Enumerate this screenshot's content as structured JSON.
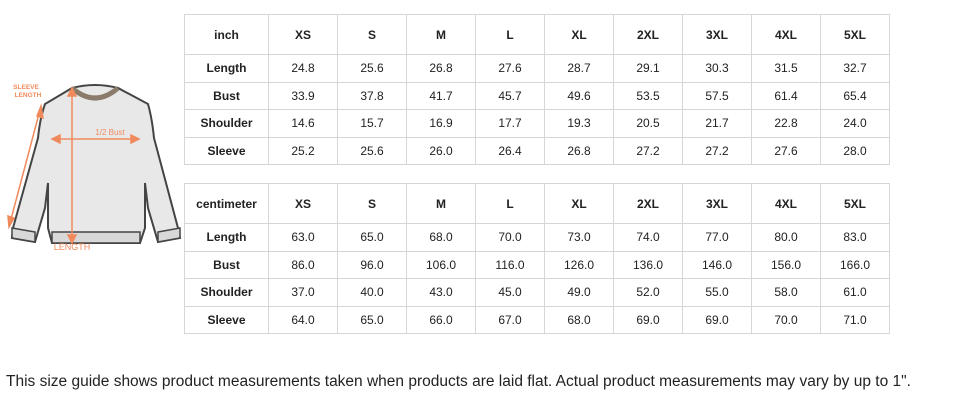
{
  "diagram": {
    "sleeve_label_1": "SLEEVE",
    "sleeve_label_2": "LENGTH",
    "bust_label": "1/2 Bust",
    "length_label": "LENGTH",
    "accent": "#f08a5d"
  },
  "tables": [
    {
      "unit": "inch",
      "sizes": [
        "XS",
        "S",
        "M",
        "L",
        "XL",
        "2XL",
        "3XL",
        "4XL",
        "5XL"
      ],
      "rows": [
        {
          "label": "Length",
          "values": [
            "24.8",
            "25.6",
            "26.8",
            "27.6",
            "28.7",
            "29.1",
            "30.3",
            "31.5",
            "32.7"
          ]
        },
        {
          "label": "Bust",
          "values": [
            "33.9",
            "37.8",
            "41.7",
            "45.7",
            "49.6",
            "53.5",
            "57.5",
            "61.4",
            "65.4"
          ]
        },
        {
          "label": "Shoulder",
          "values": [
            "14.6",
            "15.7",
            "16.9",
            "17.7",
            "19.3",
            "20.5",
            "21.7",
            "22.8",
            "24.0"
          ]
        },
        {
          "label": "Sleeve",
          "values": [
            "25.2",
            "25.6",
            "26.0",
            "26.4",
            "26.8",
            "27.2",
            "27.2",
            "27.6",
            "28.0"
          ]
        }
      ]
    },
    {
      "unit": "centimeter",
      "sizes": [
        "XS",
        "S",
        "M",
        "L",
        "XL",
        "2XL",
        "3XL",
        "4XL",
        "5XL"
      ],
      "rows": [
        {
          "label": "Length",
          "values": [
            "63.0",
            "65.0",
            "68.0",
            "70.0",
            "73.0",
            "74.0",
            "77.0",
            "80.0",
            "83.0"
          ]
        },
        {
          "label": "Bust",
          "values": [
            "86.0",
            "96.0",
            "106.0",
            "116.0",
            "126.0",
            "136.0",
            "146.0",
            "156.0",
            "166.0"
          ]
        },
        {
          "label": "Shoulder",
          "values": [
            "37.0",
            "40.0",
            "43.0",
            "45.0",
            "49.0",
            "52.0",
            "55.0",
            "58.0",
            "61.0"
          ]
        },
        {
          "label": "Sleeve",
          "values": [
            "64.0",
            "65.0",
            "66.0",
            "67.0",
            "68.0",
            "69.0",
            "69.0",
            "70.0",
            "71.0"
          ]
        }
      ]
    }
  ],
  "note": "This size guide shows product measurements taken when products are laid flat. Actual product measurements may vary by up to 1\"."
}
